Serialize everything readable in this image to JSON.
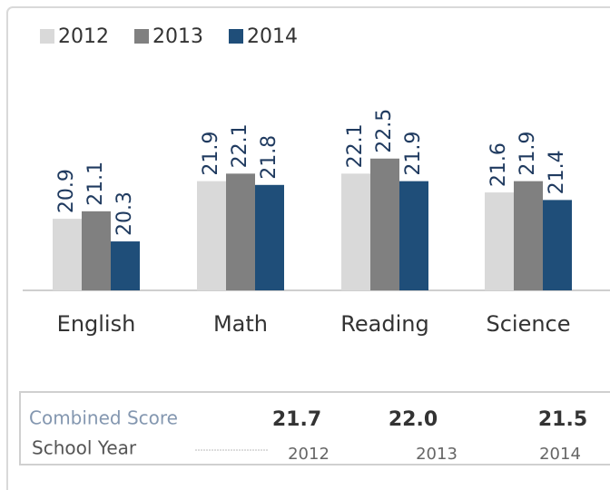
{
  "chart_data": {
    "type": "bar",
    "categories": [
      "English",
      "Math",
      "Reading",
      "Science"
    ],
    "series": [
      {
        "name": "2012",
        "color": "#d9d9d9",
        "values": [
          20.9,
          21.9,
          22.1,
          21.6
        ]
      },
      {
        "name": "2013",
        "color": "#808080",
        "values": [
          21.1,
          22.1,
          22.5,
          21.9
        ]
      },
      {
        "name": "2014",
        "color": "#1f4e79",
        "values": [
          20.3,
          21.8,
          21.9,
          21.4
        ]
      }
    ],
    "ylim": [
      19,
      23
    ],
    "legend": "top-left"
  },
  "table": {
    "combined_score": {
      "label": "Combined Score",
      "values": [
        21.7,
        22.0,
        21.5
      ],
      "value_labels": [
        "21.7",
        "22.0",
        "21.5"
      ]
    },
    "school_year": {
      "label": "School Year",
      "years": [
        "2012",
        "2013",
        "2014"
      ]
    }
  }
}
